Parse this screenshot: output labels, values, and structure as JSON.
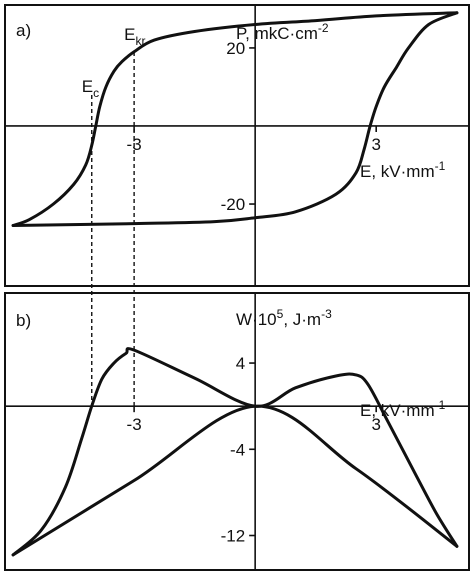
{
  "chart_data": [
    {
      "panel_label": "a)",
      "type": "line",
      "ylabel_base": "P, mkC·cm",
      "ylabel_exp": "-2",
      "xlabel_base": "E, kV·mm",
      "xlabel_exp": "-1",
      "xlim": [
        -6.2,
        5.3
      ],
      "ylim": [
        -41,
        31
      ],
      "yticks": [
        {
          "value": 20,
          "label": "20"
        },
        {
          "value": -20,
          "label": "-20"
        }
      ],
      "xticks": [
        {
          "value": -3,
          "label": "-3"
        },
        {
          "value": 3,
          "label": "3"
        }
      ],
      "markers": [
        {
          "name_base": "E",
          "name_sub": "c",
          "x": -4.05
        },
        {
          "name_base": "E",
          "name_sub": "kr",
          "x": -3.0
        }
      ],
      "series": [
        {
          "branch": "descending",
          "points": [
            [
              5.0,
              29.0
            ],
            [
              3.0,
              28.2
            ],
            [
              1.5,
              27.0
            ],
            [
              0.0,
              26.0
            ],
            [
              -1.5,
              24.2
            ],
            [
              -2.5,
              22.0
            ],
            [
              -3.0,
              19.0
            ],
            [
              -3.3,
              16.5
            ],
            [
              -3.5,
              14.0
            ],
            [
              -3.7,
              10.0
            ],
            [
              -3.85,
              5.0
            ],
            [
              -3.95,
              0.0
            ],
            [
              -4.05,
              -5.0
            ],
            [
              -4.2,
              -10.0
            ],
            [
              -4.5,
              -15.0
            ],
            [
              -5.0,
              -20.0
            ],
            [
              -5.6,
              -24.0
            ],
            [
              -6.0,
              -25.5
            ]
          ]
        },
        {
          "branch": "ascending",
          "points": [
            [
              -6.0,
              -25.5
            ],
            [
              -3.0,
              -25.0
            ],
            [
              -1.0,
              -24.5
            ],
            [
              0.0,
              -23.5
            ],
            [
              1.0,
              -22.0
            ],
            [
              2.0,
              -17.5
            ],
            [
              2.5,
              -12.0
            ],
            [
              2.7,
              -6.0
            ],
            [
              2.85,
              0.0
            ],
            [
              3.0,
              5.0
            ],
            [
              3.2,
              10.0
            ],
            [
              3.5,
              15.0
            ],
            [
              3.8,
              20.0
            ],
            [
              4.3,
              26.0
            ],
            [
              5.0,
              29.0
            ]
          ]
        }
      ]
    },
    {
      "panel_label": "b)",
      "type": "line",
      "ylabel_base": "W·10",
      "ylabel_sup1": "5",
      "ylabel_mid": ", J·m",
      "ylabel_exp": "-3",
      "xlabel_base": "E, kV·mm",
      "xlabel_exp": "-1",
      "xlim": [
        -6.2,
        5.3
      ],
      "ylim": [
        -15.2,
        10.5
      ],
      "yticks": [
        {
          "value": 4,
          "label": "4"
        },
        {
          "value": -4,
          "label": "-4"
        },
        {
          "value": -12,
          "label": "-12"
        }
      ],
      "xticks": [
        {
          "value": -3,
          "label": "-3"
        },
        {
          "value": 3,
          "label": "3"
        }
      ],
      "series": [
        {
          "branch": "outer",
          "points": [
            [
              -6.0,
              -13.8
            ],
            [
              -5.3,
              -11.5
            ],
            [
              -4.7,
              -7.5
            ],
            [
              -4.3,
              -3.0
            ],
            [
              -4.05,
              0.0
            ],
            [
              -3.8,
              2.5
            ],
            [
              -3.5,
              4.0
            ],
            [
              -3.2,
              4.9
            ],
            [
              -3.0,
              5.2
            ],
            [
              -1.5,
              2.6
            ],
            [
              0.0,
              0.0
            ],
            [
              1.0,
              1.7
            ],
            [
              2.0,
              2.8
            ],
            [
              2.5,
              2.9
            ],
            [
              2.8,
              2.0
            ],
            [
              3.3,
              -1.5
            ],
            [
              4.0,
              -6.5
            ],
            [
              4.5,
              -10.0
            ],
            [
              5.0,
              -13.0
            ]
          ]
        },
        {
          "branch": "inner",
          "points": [
            [
              -6.0,
              -13.8
            ],
            [
              -3.0,
              -6.9
            ],
            [
              0.0,
              0.0
            ],
            [
              2.5,
              -5.8
            ],
            [
              5.0,
              -13.0
            ]
          ]
        }
      ]
    }
  ]
}
